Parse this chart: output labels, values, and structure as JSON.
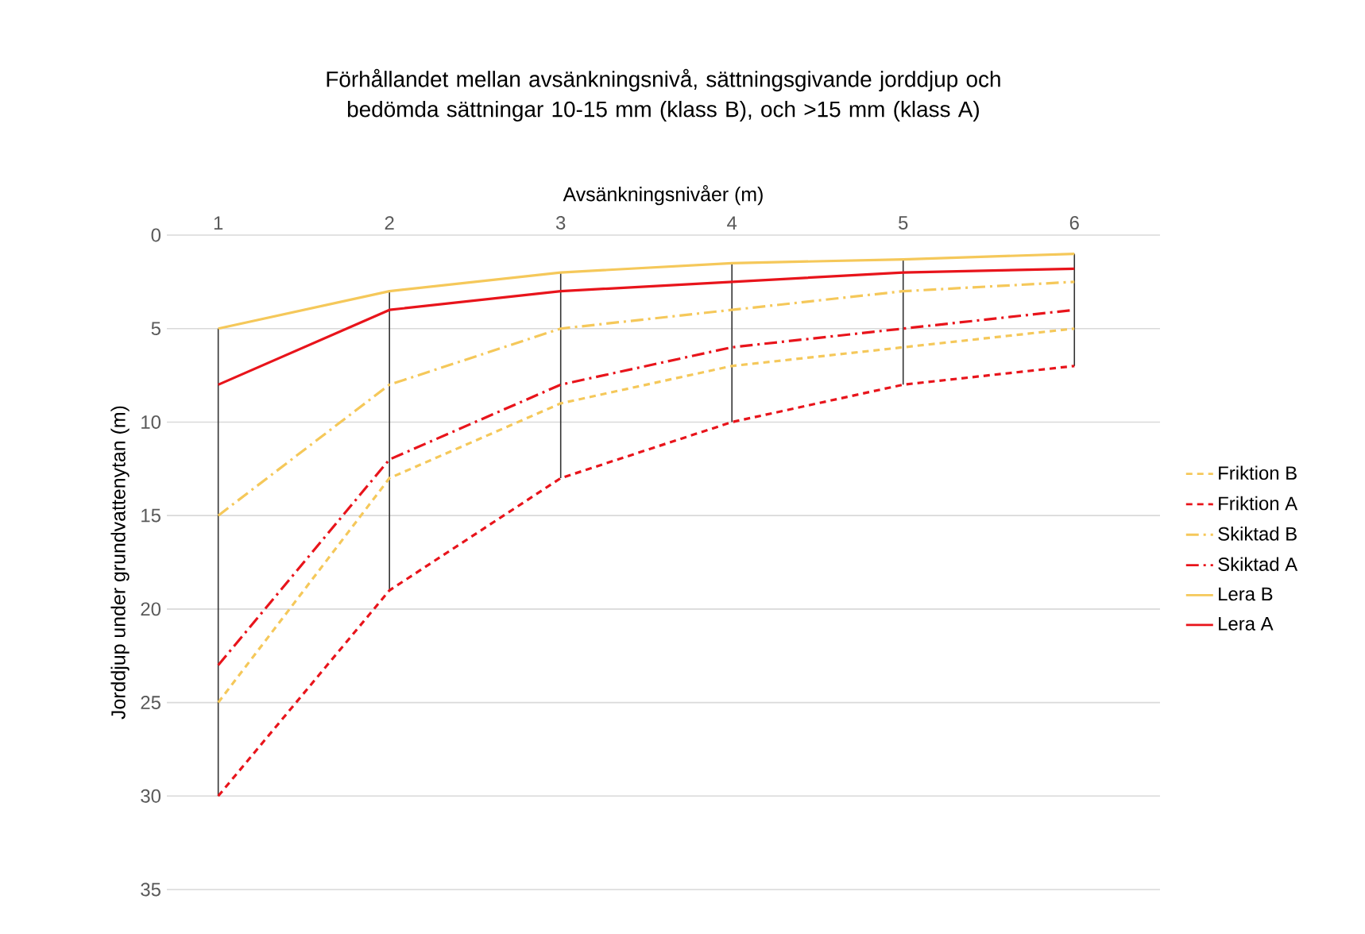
{
  "chart_data": {
    "type": "line",
    "title": "Förhållandet mellan avsänkningsnivå, sättningsgivande jorddjup och bedömda sättningar 10-15 mm (klass B), och >15 mm (klass A)",
    "xlabel": "Avsänkningsnivåer (m)",
    "ylabel": "Jorddjup under grundvattenytan (m)",
    "categories": [
      "1",
      "2",
      "3",
      "4",
      "5",
      "6"
    ],
    "ylim": [
      35,
      0
    ],
    "yticks": [
      0,
      5,
      10,
      15,
      20,
      25,
      30,
      35
    ],
    "grid": "y",
    "legend": "right",
    "series": [
      {
        "name": "Friktion B",
        "color": "#f5c85a",
        "line_style": "dashed",
        "values": [
          25,
          13,
          9,
          7,
          6,
          5
        ]
      },
      {
        "name": "Friktion A",
        "color": "#e8141b",
        "line_style": "dashed",
        "values": [
          30,
          19,
          13,
          10,
          8,
          7
        ]
      },
      {
        "name": "Skiktad B",
        "color": "#f5c85a",
        "line_style": "dashdot",
        "values": [
          15,
          8,
          5,
          4,
          3,
          2.5
        ]
      },
      {
        "name": "Skiktad A",
        "color": "#e8141b",
        "line_style": "dashdot",
        "values": [
          23,
          12,
          8,
          6,
          5,
          4
        ]
      },
      {
        "name": "Lera B",
        "color": "#f5c85a",
        "line_style": "solid",
        "values": [
          5,
          3,
          2,
          1.5,
          1.3,
          1
        ],
        "errors": [
          [
            5,
            30
          ],
          [
            3,
            19
          ],
          [
            2,
            13
          ],
          [
            1.5,
            10
          ],
          [
            1.3,
            8
          ],
          [
            1,
            7
          ]
        ]
      },
      {
        "name": "Lera A",
        "color": "#e8141b",
        "line_style": "solid",
        "values": [
          8,
          4,
          3,
          2.5,
          2,
          1.8
        ]
      }
    ]
  }
}
